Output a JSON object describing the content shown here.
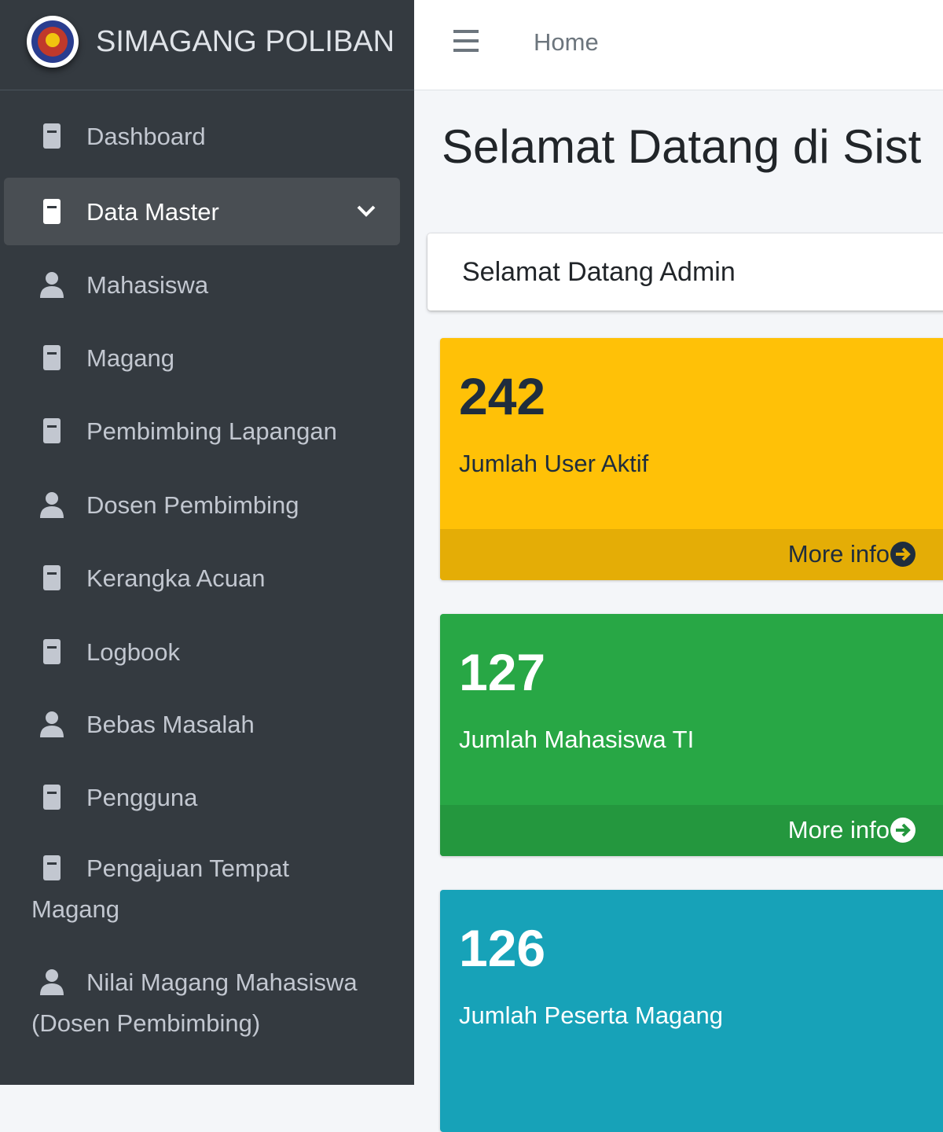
{
  "brand": "SIMAGANG POLIBAN",
  "header": {
    "nav": "Home"
  },
  "sidebar": {
    "items": [
      {
        "lines": [
          "Dashboard"
        ]
      },
      {
        "lines": [
          "Data Master"
        ],
        "active": true,
        "expandable": true
      },
      {
        "lines": [
          "Mahasiswa"
        ]
      },
      {
        "lines": [
          "Magang"
        ]
      },
      {
        "lines": [
          "Pembimbing Lapangan"
        ]
      },
      {
        "lines": [
          "Dosen Pembimbing"
        ]
      },
      {
        "lines": [
          "Kerangka Acuan"
        ]
      },
      {
        "lines": [
          "Logbook"
        ]
      },
      {
        "lines": [
          "Bebas Masalah"
        ]
      },
      {
        "lines": [
          "Pengguna"
        ]
      },
      {
        "lines": [
          "Pengajuan Tempat",
          "Magang"
        ]
      },
      {
        "lines": [
          "Nilai Magang Mahasiswa",
          "(Dosen Pembimbing)"
        ]
      }
    ]
  },
  "page": {
    "title": "Selamat Datang di Sist",
    "card": "Selamat Datang Admin"
  },
  "stats": [
    {
      "value": "242",
      "label": "Jumlah User Aktif",
      "link": "More info",
      "color": "#ffc107",
      "footer": "#e4ad06",
      "text": "#1f2d3d"
    },
    {
      "value": "127",
      "label": "Jumlah Mahasiswa TI",
      "link": "More info",
      "color": "#28a745",
      "footer": "#24973e",
      "text": "#ffffff"
    },
    {
      "value": "126",
      "label": "Jumlah Peserta Magang",
      "color": "#17a2b8",
      "text": "#ffffff"
    }
  ]
}
